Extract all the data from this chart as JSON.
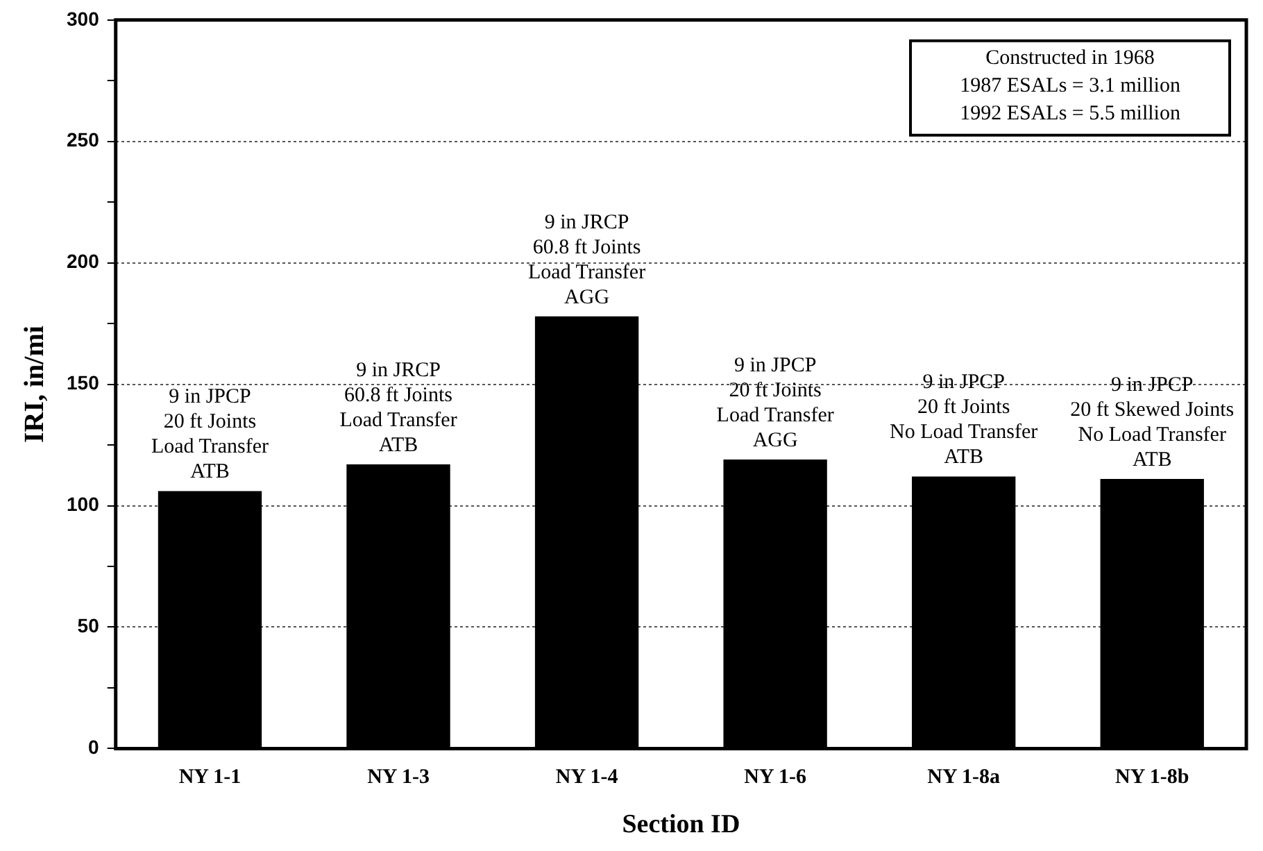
{
  "chart_data": {
    "type": "bar",
    "xlabel": "Section ID",
    "ylabel": "IRI, in/mi",
    "categories": [
      "NY 1-1",
      "NY 1-3",
      "NY 1-4",
      "NY 1-6",
      "NY 1-8a",
      "NY 1-8b"
    ],
    "values": [
      106,
      117,
      178,
      119,
      112,
      111
    ],
    "color": "#000000",
    "ylim": [
      0,
      300
    ],
    "yticks": [
      0,
      {
        "value": 25,
        "label": null
      },
      50,
      {
        "value": 75,
        "label": null
      },
      100,
      {
        "value": 125,
        "label": null
      },
      150,
      {
        "value": 175,
        "label": null
      },
      200,
      {
        "value": 225,
        "label": null
      },
      250,
      {
        "value": 275,
        "label": null
      },
      300
    ],
    "grid": "y",
    "legend": false,
    "annotations": [
      {
        "text": "9 in JPCP\n20 ft Joints\nLoad Transfer\nATB",
        "x": "NY 1-1",
        "y": 106
      },
      {
        "text": "9 in JRCP\n60.8 ft Joints\nLoad Transfer\nATB",
        "x": "NY 1-3",
        "y": 117
      },
      {
        "text": "9 in JRCP\n60.8 ft Joints\nLoad Transfer\nAGG",
        "x": "NY 1-4",
        "y": 178
      },
      {
        "text": "9 in JPCP\n20 ft Joints\nLoad Transfer\nAGG",
        "x": "NY 1-6",
        "y": 119
      },
      {
        "text": "9 in JPCP\n20 ft Joints\nNo Load Transfer\nATB",
        "x": "NY 1-8a",
        "y": 112
      },
      {
        "text": "9 in JPCP\n20 ft Skewed Joints\nNo Load Transfer\nATB",
        "x": "NY 1-8b",
        "y": 111
      },
      "Constructed in 1968\n1987 ESALs = 3.1 million\n1992 ESALs = 5.5 million"
    ]
  }
}
